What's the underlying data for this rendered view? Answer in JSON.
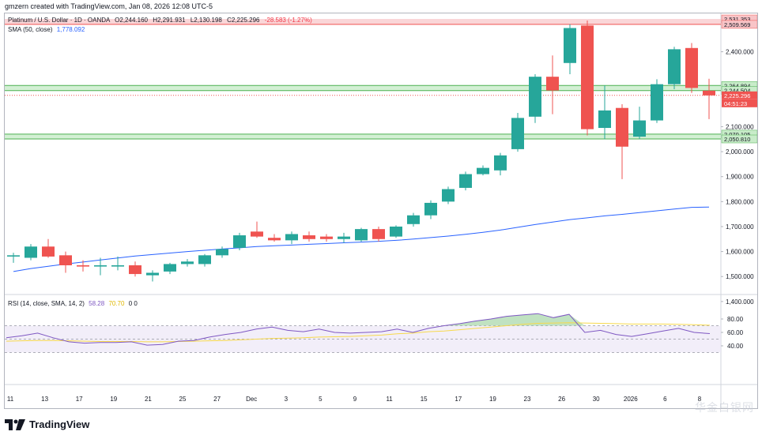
{
  "header": {
    "created_by": "gmzern created with TradingView.com, Jan 08, 2026 12:08 UTC-5"
  },
  "legend": {
    "symbol": "Platinum / U.S. Dollar · 1D · OANDA",
    "open": "O2,244.160",
    "high": "H2,291.931",
    "low": "L2,130.198",
    "close": "C2,225.296",
    "change": "-28.583 (-1.27%)",
    "change_color": "#f23645",
    "sma_label": "SMA (50, close)",
    "sma_value": "1,778.092",
    "sma_color": "#2962ff",
    "rsi_label": "RSI (14, close, SMA, 14, 2)",
    "rsi_value": "58.28",
    "rsi_ma_value": "70.70",
    "rsi_extra": "0 0",
    "rsi_color": "#7e57c2",
    "rsi_ma_color": "#f7d94c"
  },
  "price_axis": {
    "currency": "USD"
  },
  "price_tags": [
    {
      "label": "2,531.353",
      "kind": "resistance"
    },
    {
      "label": "2,509.569",
      "kind": "resistance"
    },
    {
      "label": "2,264.894",
      "kind": "support"
    },
    {
      "label": "2,244.504",
      "kind": "support"
    },
    {
      "label": "2,225.296",
      "kind": "last"
    },
    {
      "label": "04:51:23",
      "kind": "countdown"
    },
    {
      "label": "2,070.105",
      "kind": "support"
    },
    {
      "label": "2,050.810",
      "kind": "support"
    }
  ],
  "colors": {
    "up": "#26a69a",
    "down": "#ef5350",
    "resistance_zone": "#f8bfc3",
    "support_zone": "#c8ecc9"
  },
  "footer": {
    "brand": "TradingView",
    "watermark": "华金白银网"
  },
  "chart_data": [
    {
      "type": "candlestick",
      "title": "Platinum / U.S. Dollar · 1D · OANDA",
      "x_tick_labels": [
        "11",
        "13",
        "17",
        "19",
        "21",
        "25",
        "27",
        "Dec",
        "3",
        "5",
        "9",
        "11",
        "15",
        "17",
        "19",
        "23",
        "26",
        "30",
        "2026",
        "6",
        "8"
      ],
      "y_ticks": [
        1400,
        1500,
        1600,
        1700,
        1800,
        1900,
        2000,
        2100,
        2400
      ],
      "y_tick_labels": [
        "1,400.000",
        "1,500.000",
        "1,600.000",
        "1,700.000",
        "1,800.000",
        "1,900.000",
        "2,000.000",
        "2,100.000",
        "2,400.000"
      ],
      "ylim": [
        1360,
        2580
      ],
      "candles": [
        {
          "o": 1580,
          "h": 1595,
          "l": 1555,
          "c": 1585
        },
        {
          "o": 1575,
          "h": 1630,
          "l": 1565,
          "c": 1620
        },
        {
          "o": 1620,
          "h": 1650,
          "l": 1575,
          "c": 1580
        },
        {
          "o": 1585,
          "h": 1600,
          "l": 1515,
          "c": 1545
        },
        {
          "o": 1545,
          "h": 1565,
          "l": 1520,
          "c": 1540
        },
        {
          "o": 1540,
          "h": 1575,
          "l": 1505,
          "c": 1545
        },
        {
          "o": 1540,
          "h": 1580,
          "l": 1525,
          "c": 1545
        },
        {
          "o": 1545,
          "h": 1560,
          "l": 1500,
          "c": 1510
        },
        {
          "o": 1505,
          "h": 1525,
          "l": 1480,
          "c": 1515
        },
        {
          "o": 1520,
          "h": 1555,
          "l": 1510,
          "c": 1550
        },
        {
          "o": 1550,
          "h": 1570,
          "l": 1540,
          "c": 1560
        },
        {
          "o": 1550,
          "h": 1590,
          "l": 1540,
          "c": 1585
        },
        {
          "o": 1585,
          "h": 1620,
          "l": 1575,
          "c": 1610
        },
        {
          "o": 1615,
          "h": 1675,
          "l": 1605,
          "c": 1665
        },
        {
          "o": 1680,
          "h": 1720,
          "l": 1655,
          "c": 1660
        },
        {
          "o": 1655,
          "h": 1670,
          "l": 1640,
          "c": 1645
        },
        {
          "o": 1645,
          "h": 1680,
          "l": 1630,
          "c": 1670
        },
        {
          "o": 1665,
          "h": 1680,
          "l": 1640,
          "c": 1650
        },
        {
          "o": 1660,
          "h": 1670,
          "l": 1640,
          "c": 1650
        },
        {
          "o": 1650,
          "h": 1675,
          "l": 1635,
          "c": 1660
        },
        {
          "o": 1645,
          "h": 1695,
          "l": 1640,
          "c": 1690
        },
        {
          "o": 1690,
          "h": 1700,
          "l": 1640,
          "c": 1650
        },
        {
          "o": 1660,
          "h": 1705,
          "l": 1655,
          "c": 1700
        },
        {
          "o": 1710,
          "h": 1755,
          "l": 1700,
          "c": 1745
        },
        {
          "o": 1745,
          "h": 1805,
          "l": 1730,
          "c": 1795
        },
        {
          "o": 1800,
          "h": 1860,
          "l": 1790,
          "c": 1850
        },
        {
          "o": 1855,
          "h": 1920,
          "l": 1845,
          "c": 1910
        },
        {
          "o": 1910,
          "h": 1945,
          "l": 1905,
          "c": 1935
        },
        {
          "o": 1925,
          "h": 1995,
          "l": 1905,
          "c": 1985
        },
        {
          "o": 2010,
          "h": 2155,
          "l": 2000,
          "c": 2135
        },
        {
          "o": 2140,
          "h": 2310,
          "l": 2115,
          "c": 2300
        },
        {
          "o": 2300,
          "h": 2385,
          "l": 2150,
          "c": 2245
        },
        {
          "o": 2355,
          "h": 2510,
          "l": 2310,
          "c": 2495
        },
        {
          "o": 2505,
          "h": 2525,
          "l": 2065,
          "c": 2090
        },
        {
          "o": 2095,
          "h": 2265,
          "l": 2050,
          "c": 2165
        },
        {
          "o": 2175,
          "h": 2190,
          "l": 1890,
          "c": 2020
        },
        {
          "o": 2060,
          "h": 2180,
          "l": 2050,
          "c": 2125
        },
        {
          "o": 2125,
          "h": 2290,
          "l": 2115,
          "c": 2270
        },
        {
          "o": 2270,
          "h": 2420,
          "l": 2250,
          "c": 2410
        },
        {
          "o": 2415,
          "h": 2435,
          "l": 2235,
          "c": 2255
        },
        {
          "o": 2244.16,
          "h": 2291.931,
          "l": 2130.198,
          "c": 2225.296
        }
      ],
      "sma": [
        1520,
        1532,
        1541,
        1550,
        1558,
        1566,
        1574,
        1582,
        1588,
        1594,
        1600,
        1605,
        1610,
        1615,
        1620,
        1623,
        1626,
        1629,
        1632,
        1635,
        1638,
        1641,
        1645,
        1650,
        1656,
        1662,
        1669,
        1677,
        1686,
        1697,
        1708,
        1718,
        1728,
        1735,
        1743,
        1749,
        1756,
        1763,
        1770,
        1777,
        1778.092
      ],
      "resistance_zone": [
        2509.569,
        2531.353
      ],
      "support_zones": [
        [
          2244.504,
          2264.894
        ],
        [
          2050.81,
          2070.105
        ]
      ]
    },
    {
      "type": "line",
      "title": "RSI (14, close, SMA, 14, 2)",
      "y_ticks": [
        40,
        60,
        80
      ],
      "y_tick_labels": [
        "40.00",
        "60.00",
        "80.00"
      ],
      "ylim": [
        20,
        100
      ],
      "levels": [
        30,
        50,
        70
      ],
      "series": [
        {
          "name": "RSI",
          "values": [
            52,
            55,
            59,
            52,
            46,
            44,
            45,
            45,
            46,
            41,
            42,
            47,
            48,
            53,
            57,
            60,
            65,
            68,
            63,
            61,
            65,
            60,
            59,
            60,
            61,
            65,
            60,
            66,
            70,
            73,
            77,
            80,
            84,
            86,
            88,
            82,
            87,
            60,
            63,
            57,
            54,
            58,
            62,
            66,
            60,
            58.28
          ]
        },
        {
          "name": "RSI-based MA",
          "values": [
            47,
            47.5,
            48,
            48,
            47.5,
            47,
            46.5,
            46.5,
            46.5,
            46,
            46,
            46.5,
            47,
            47.5,
            48,
            49,
            50,
            51,
            51.5,
            52,
            53,
            53.5,
            54,
            55,
            56,
            58,
            59,
            61,
            62,
            64,
            66,
            68,
            70,
            72,
            73.5,
            74,
            74.5,
            74,
            73.5,
            73,
            72.5,
            72.5,
            72.5,
            72,
            71.5,
            70.7
          ]
        }
      ]
    }
  ]
}
